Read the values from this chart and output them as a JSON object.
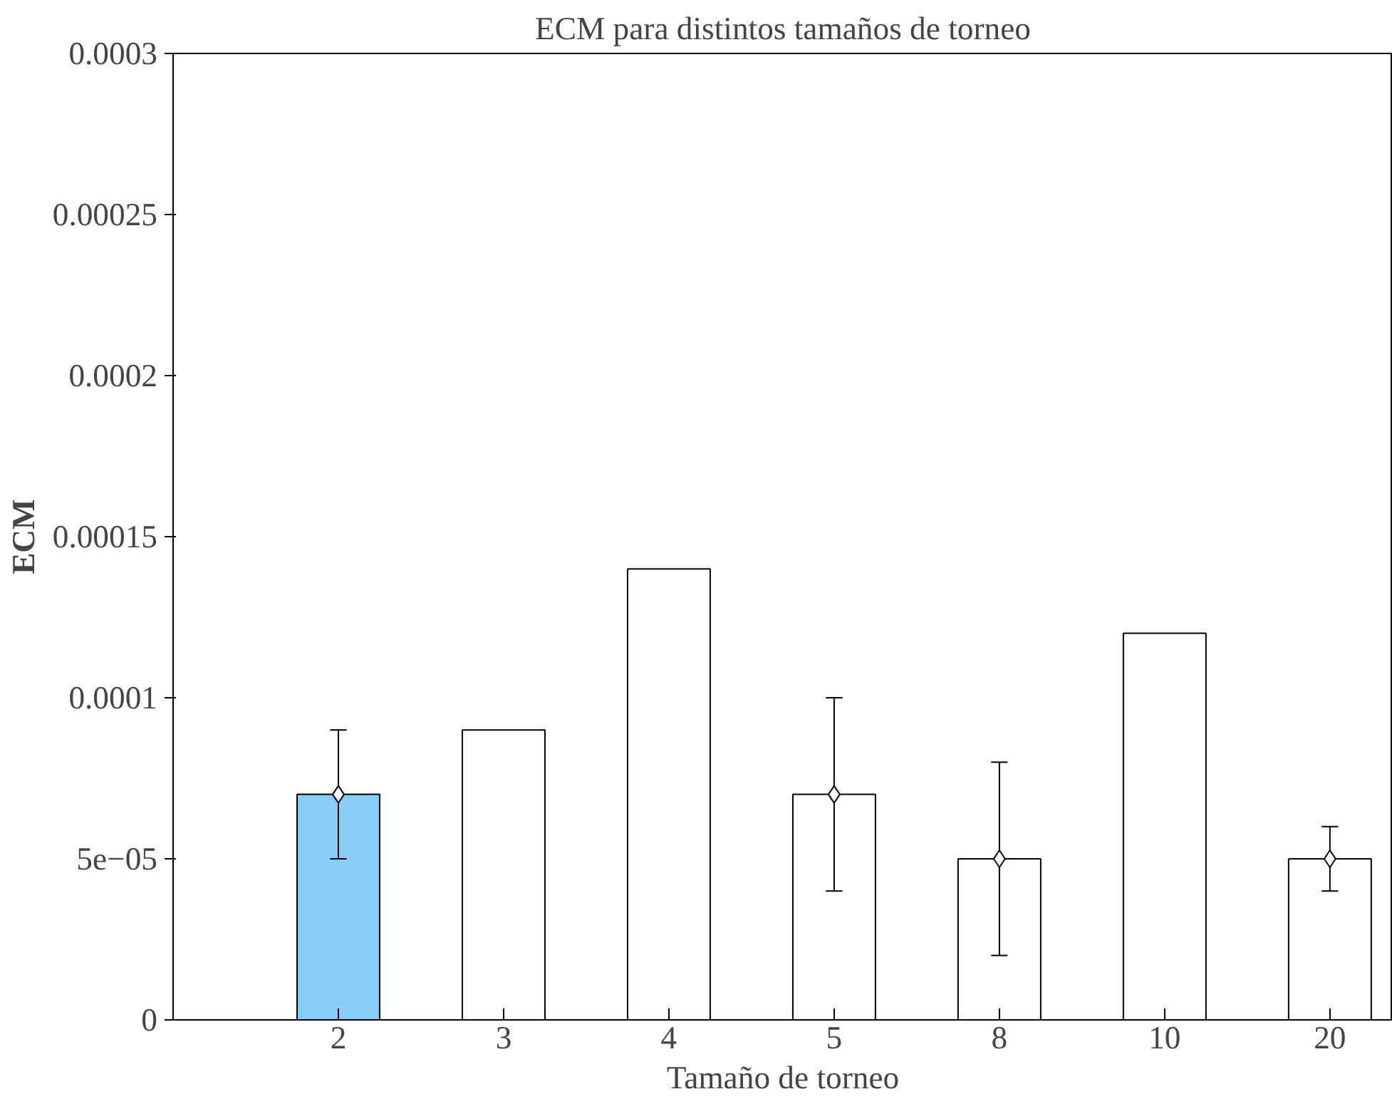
{
  "chart_data": {
    "type": "bar",
    "title": "ECM para distintos tamaños de torneo",
    "xlabel": "Tamaño de torneo",
    "ylabel": "ECM",
    "categories": [
      "2",
      "3",
      "4",
      "5",
      "8",
      "10",
      "20"
    ],
    "series": [
      {
        "colors": [
          "#87cefa",
          "#ffffff",
          "#ffffff",
          "#ffffff",
          "#ffffff",
          "#ffffff",
          "#ffffff"
        ],
        "values": [
          7e-05,
          9e-05,
          0.00014,
          7e-05,
          5e-05,
          0.00012,
          5e-05
        ]
      },
      {
        "type": "scatter",
        "color": "#000000",
        "x": [
          "2",
          "5",
          "8",
          "20"
        ],
        "values": [
          7e-05,
          7e-05,
          5e-05,
          5e-05
        ],
        "errors": [
          [
            5e-05,
            9e-05
          ],
          [
            4e-05,
            0.0001
          ],
          [
            2e-05,
            8e-05
          ],
          [
            4e-05,
            6e-05
          ]
        ]
      }
    ],
    "ylim": [
      0,
      0.0003
    ],
    "yticks": [
      0,
      {
        "value": 5e-05,
        "label": "5e−05"
      },
      {
        "value": 0.0001,
        "label": "0.0001"
      },
      {
        "value": 0.00015,
        "label": "0.00015"
      },
      {
        "value": 0.0002,
        "label": "0.0002"
      },
      {
        "value": 0.00025,
        "label": "0.00025"
      },
      {
        "value": 0.0003,
        "label": "0.0003"
      }
    ],
    "marker": "diamond",
    "grid": false
  }
}
